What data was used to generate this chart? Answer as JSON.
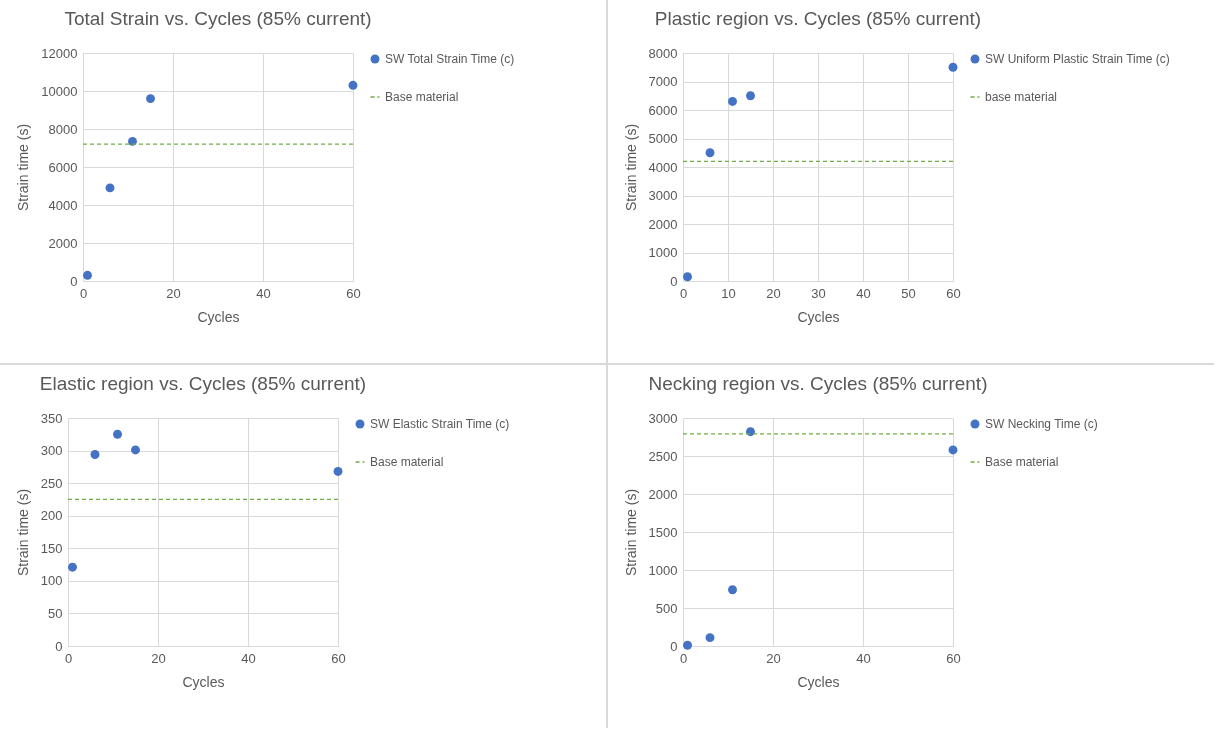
{
  "chart_data": [
    {
      "type": "scatter",
      "title": "Total Strain vs. Cycles (85% current)",
      "xlabel": "Cycles",
      "ylabel": "Strain time (s)",
      "x": [
        1,
        6,
        11,
        15,
        60
      ],
      "series": [
        {
          "name": "SW Total Strain Time (c)",
          "color": "#4472c4",
          "values": [
            300,
            4900,
            7350,
            9600,
            10300
          ]
        }
      ],
      "xlim": [
        0,
        60
      ],
      "xticks": [
        0,
        20,
        40,
        60
      ],
      "ylim": [
        0,
        12000
      ],
      "yticks": [
        0,
        2000,
        4000,
        6000,
        8000,
        10000,
        12000
      ],
      "grid": true,
      "legend": "right",
      "marker": "circle",
      "ref_lines": [
        {
          "axis": "y",
          "value": 7200,
          "label": "Base material",
          "color": "#70ad47",
          "line_style": "dashed"
        }
      ]
    },
    {
      "type": "scatter",
      "title": "Plastic region vs. Cycles (85% current)",
      "xlabel": "Cycles",
      "ylabel": "Strain time (s)",
      "x": [
        1,
        6,
        11,
        15,
        60
      ],
      "series": [
        {
          "name": "SW Uniform Plastic Strain Time (c)",
          "color": "#4472c4",
          "values": [
            150,
            4500,
            6300,
            6500,
            7500
          ]
        }
      ],
      "xlim": [
        0,
        60
      ],
      "xticks": [
        0,
        10,
        20,
        30,
        40,
        50,
        60
      ],
      "ylim": [
        0,
        8000
      ],
      "yticks": [
        0,
        1000,
        2000,
        3000,
        4000,
        5000,
        6000,
        7000,
        8000
      ],
      "grid": true,
      "legend": "right",
      "marker": "circle",
      "ref_lines": [
        {
          "axis": "y",
          "value": 4200,
          "label": "base material",
          "color": "#70ad47",
          "line_style": "dashed"
        }
      ]
    },
    {
      "type": "scatter",
      "title": "Elastic region vs. Cycles (85% current)",
      "xlabel": "Cycles",
      "ylabel": "Strain time (s)",
      "x": [
        1,
        6,
        11,
        15,
        60
      ],
      "series": [
        {
          "name": "SW Elastic Strain Time (c)",
          "color": "#4472c4",
          "values": [
            121,
            294,
            325,
            301,
            268
          ]
        }
      ],
      "xlim": [
        0,
        60
      ],
      "xticks": [
        0,
        20,
        40,
        60
      ],
      "ylim": [
        0,
        350
      ],
      "yticks": [
        0,
        50,
        100,
        150,
        200,
        250,
        300,
        350
      ],
      "grid": true,
      "legend": "right",
      "marker": "circle",
      "ref_lines": [
        {
          "axis": "y",
          "value": 225,
          "label": "Base material",
          "color": "#70ad47",
          "line_style": "dashed"
        }
      ]
    },
    {
      "type": "scatter",
      "title": "Necking region vs. Cycles (85% current)",
      "xlabel": "Cycles",
      "ylabel": "Strain time (s)",
      "x": [
        1,
        6,
        11,
        15,
        60
      ],
      "series": [
        {
          "name": "SW Necking Time (c)",
          "color": "#4472c4",
          "values": [
            10,
            110,
            740,
            2820,
            2580
          ]
        }
      ],
      "xlim": [
        0,
        60
      ],
      "xticks": [
        0,
        20,
        40,
        60
      ],
      "ylim": [
        0,
        3000
      ],
      "yticks": [
        0,
        500,
        1000,
        1500,
        2000,
        2500,
        3000
      ],
      "grid": true,
      "legend": "right",
      "marker": "circle",
      "ref_lines": [
        {
          "axis": "y",
          "value": 2790,
          "label": "Base material",
          "color": "#70ad47",
          "line_style": "dashed"
        }
      ]
    }
  ]
}
